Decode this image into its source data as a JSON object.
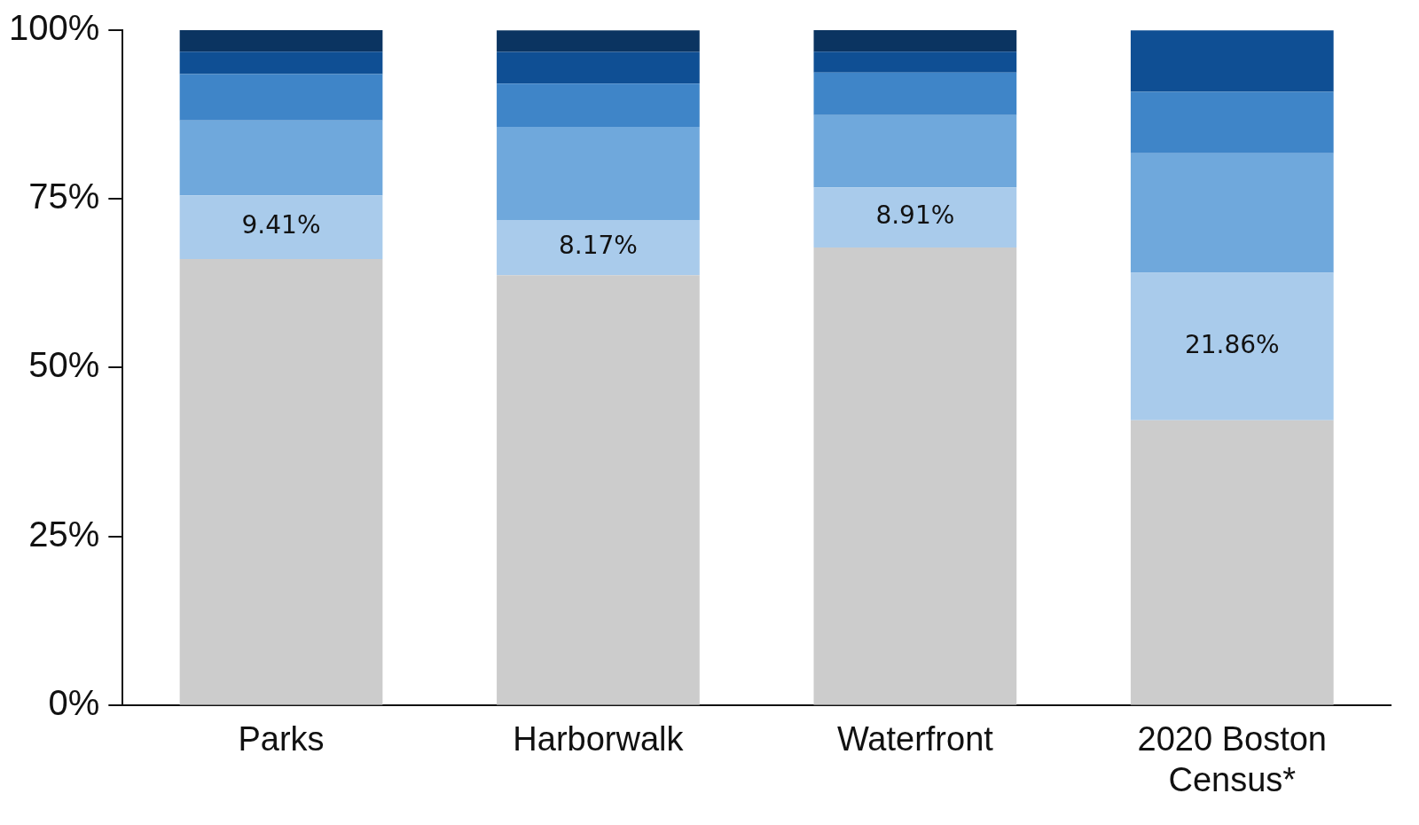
{
  "chart_data": {
    "type": "bar",
    "stacked": true,
    "categories": [
      "Parks",
      "Harborwalk",
      "Waterfront",
      "2020 Boston Census*"
    ],
    "series": [
      {
        "color": "#cccccc",
        "values": [
          66.1,
          63.7,
          67.8,
          42.2
        ]
      },
      {
        "color": "#a9cbeb",
        "values": [
          9.41,
          8.17,
          8.91,
          21.86
        ],
        "value_labels": [
          "9.41%",
          "8.17%",
          "8.91%",
          "21.86%"
        ]
      },
      {
        "color": "#6fa8dc",
        "values": [
          11.1,
          13.8,
          10.7,
          17.7
        ]
      },
      {
        "color": "#3f85c8",
        "values": [
          6.9,
          6.4,
          6.3,
          9.1
        ]
      },
      {
        "color": "#0f4f94",
        "values": [
          3.3,
          4.7,
          3.1,
          9.1
        ]
      },
      {
        "color": "#0b3461",
        "values": [
          3.2,
          3.2,
          3.2,
          0
        ]
      }
    ],
    "ylim": [
      0,
      100
    ],
    "yticks": [
      {
        "value": 0,
        "label": "0%"
      },
      {
        "value": 25,
        "label": "25%"
      },
      {
        "value": 50,
        "label": "50%"
      },
      {
        "value": 75,
        "label": "75%"
      },
      {
        "value": 100,
        "label": "100%"
      }
    ],
    "grid": false,
    "legend": false
  }
}
